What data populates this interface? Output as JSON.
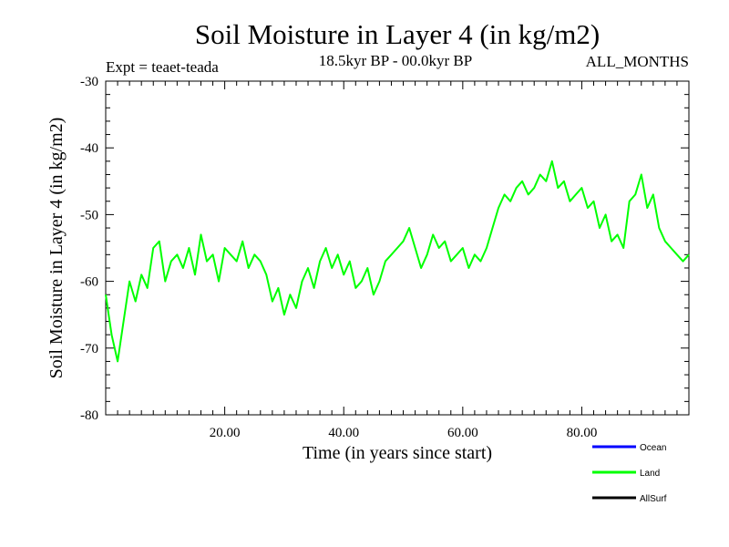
{
  "chart_data": {
    "type": "line",
    "title": "Soil Moisture in Layer 4 (in kg/m2)",
    "subtitle": "18.5kyr BP - 00.0kyr BP",
    "experiment_label": "Expt = teaet-teada",
    "season_label": "ALL_MONTHS",
    "xlabel": "Time (in years since start)",
    "ylabel": "Soil Moisture in Layer 4 (in kg/m2)",
    "xlim": [
      0,
      98
    ],
    "ylim": [
      -80,
      -30
    ],
    "x_ticks": [
      20,
      40,
      60,
      80
    ],
    "x_tick_labels": [
      "20.00",
      "40.00",
      "60.00",
      "80.00"
    ],
    "y_ticks": [
      -80,
      -70,
      -60,
      -50,
      -40,
      -30
    ],
    "y_tick_labels": [
      "-80",
      "-70",
      "-60",
      "-50",
      "-40",
      "-30"
    ],
    "legend_position": "bottom-right",
    "legend": [
      {
        "name": "Ocean",
        "color": "#0000ff"
      },
      {
        "name": "Land",
        "color": "#00ff00"
      },
      {
        "name": "AllSurf",
        "color": "#000000"
      }
    ],
    "series": [
      {
        "name": "Land",
        "color": "#00ff00",
        "x": [
          0,
          1,
          2,
          3,
          4,
          5,
          6,
          7,
          8,
          9,
          10,
          11,
          12,
          13,
          14,
          15,
          16,
          17,
          18,
          19,
          20,
          21,
          22,
          23,
          24,
          25,
          26,
          27,
          28,
          29,
          30,
          31,
          32,
          33,
          34,
          35,
          36,
          37,
          38,
          39,
          40,
          41,
          42,
          43,
          44,
          45,
          46,
          47,
          48,
          49,
          50,
          51,
          52,
          53,
          54,
          55,
          56,
          57,
          58,
          59,
          60,
          61,
          62,
          63,
          64,
          65,
          66,
          67,
          68,
          69,
          70,
          71,
          72,
          73,
          74,
          75,
          76,
          77,
          78,
          79,
          80,
          81,
          82,
          83,
          84,
          85,
          86,
          87,
          88,
          89,
          90,
          91,
          92,
          93,
          94,
          95,
          96,
          97,
          98
        ],
        "values": [
          -62,
          -68,
          -72,
          -66,
          -60,
          -63,
          -59,
          -61,
          -55,
          -54,
          -60,
          -57,
          -56,
          -58,
          -55,
          -59,
          -53,
          -57,
          -56,
          -60,
          -55,
          -56,
          -57,
          -54,
          -58,
          -56,
          -57,
          -59,
          -63,
          -61,
          -65,
          -62,
          -64,
          -60,
          -58,
          -61,
          -57,
          -55,
          -58,
          -56,
          -59,
          -57,
          -61,
          -60,
          -58,
          -62,
          -60,
          -57,
          -56,
          -55,
          -54,
          -52,
          -55,
          -58,
          -56,
          -53,
          -55,
          -54,
          -57,
          -56,
          -55,
          -58,
          -56,
          -57,
          -55,
          -52,
          -49,
          -47,
          -48,
          -46,
          -45,
          -47,
          -46,
          -44,
          -45,
          -42,
          -46,
          -45,
          -48,
          -47,
          -46,
          -49,
          -48,
          -52,
          -50,
          -54,
          -53,
          -55,
          -48,
          -47,
          -44,
          -49,
          -47,
          -52,
          -54,
          -55,
          -56,
          -57,
          -56
        ]
      }
    ]
  }
}
